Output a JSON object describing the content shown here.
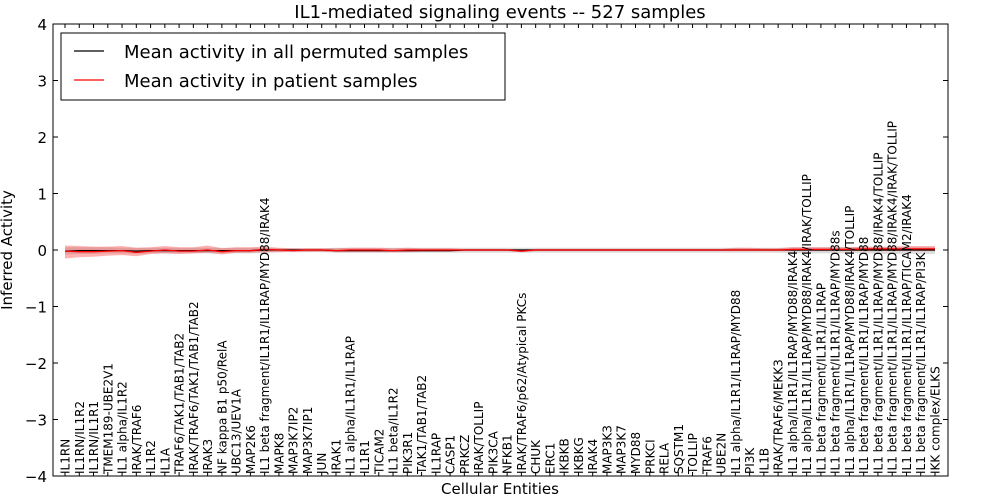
{
  "chart_data": {
    "type": "line",
    "title": "IL1-mediated signaling events -- 527 samples",
    "xlabel": "Cellular Entities",
    "ylabel": "Inferred Activity",
    "ylim": [
      -4,
      4
    ],
    "yticks": [
      -4,
      -3,
      -2,
      -1,
      0,
      1,
      2,
      3,
      4
    ],
    "ytick_labels": [
      "−4",
      "−3",
      "−2",
      "−1",
      "0",
      "1",
      "2",
      "3",
      "4"
    ],
    "legend": {
      "position": "top-left"
    },
    "categories": [
      "IL1RN",
      "IL1RN/IL1R2",
      "IL1RN/IL1R1",
      "TMEM189-UBE2V1",
      "IL1 alpha/IL1R2",
      "IRAK/TRAF6",
      "IL1R2",
      "IL1A",
      "TRAF6/TAK1/TAB1/TAB2",
      "IRAK/TRAF6/TAK1/TAB1/TAB2",
      "IRAK3",
      "NF kappa B1 p50/RelA",
      "UBC13/UEV1A",
      "MAP2K6",
      "IL1 beta fragment/IL1R1/IL1RAP/MYD88/IRAK4",
      "MAPK8",
      "MAP3K7IP2",
      "MAP3K7IP1",
      "JUN",
      "IRAK1",
      "IL1 alpha/IL1R1/IL1RAP",
      "IL1R1",
      "TICAM2",
      "IL1 beta/IL1R2",
      "PIK3R1",
      "TAK1/TAB1/TAB2",
      "IL1RAP",
      "CASP1",
      "PRKCZ",
      "IRAK/TOLLIP",
      "PIK3CA",
      "NFKB1",
      "IRAK/TRAF6/p62/Atypical PKCs",
      "CHUK",
      "ERC1",
      "IKBKB",
      "IKBKG",
      "IRAK4",
      "MAP3K3",
      "MAP3K7",
      "MYD88",
      "PRKCI",
      "RELA",
      "SQSTM1",
      "TOLLIP",
      "TRAF6",
      "UBE2N",
      "IL1 alpha/IL1R1/IL1RAP/MYD88",
      "PI3K",
      "IL1B",
      "IRAK/TRAF6/MEKK3",
      "IL1 alpha/IL1R1/IL1RAP/MYD88/IRAK4",
      "IL1 alpha/IL1R1/IL1RAP/MYD88/IRAK4/IRAK/TOLLIP",
      "IL1 beta fragment/IL1R1/IL1RAP",
      "IL1 beta fragment/IL1R1/IL1RAP/MYD88s",
      "IL1 alpha/IL1R1/IL1RAP/MYD88/IRAK4/TOLLIP",
      "IL1 beta fragment/IL1R1/IL1RAP/MYD88",
      "IL1 beta fragment/IL1R1/IL1RAP/MYD88/IRAK4/TOLLIP",
      "IL1 beta fragment/IL1R1/IL1RAP/MYD88/IRAK4/IRAK/TOLLIP",
      "IL1 beta fragment/IL1R1/IL1RAP/TICAM2/IRAK4",
      "IL1 beta fragment/IL1R1/IL1RAP/PI3K",
      "IKK complex/ELKS"
    ],
    "series": [
      {
        "name": "Mean activity in all permuted samples",
        "color": "#000000",
        "values": [
          -0.02,
          -0.01,
          -0.01,
          -0.01,
          -0.01,
          -0.02,
          -0.01,
          -0.01,
          -0.01,
          -0.01,
          -0.01,
          -0.01,
          -0.01,
          -0.01,
          0.0,
          0.0,
          0.0,
          0.0,
          0.0,
          -0.01,
          -0.01,
          -0.01,
          -0.01,
          -0.01,
          -0.01,
          -0.01,
          -0.01,
          -0.01,
          0.0,
          0.0,
          0.0,
          0.0,
          0.0,
          0.0,
          0.0,
          0.0,
          0.0,
          0.0,
          0.0,
          0.0,
          0.0,
          0.0,
          0.0,
          0.0,
          0.0,
          0.0,
          0.0,
          0.0,
          0.0,
          0.0,
          0.0,
          0.0,
          0.0,
          0.0,
          0.0,
          0.0,
          0.0,
          0.0,
          0.0,
          0.0,
          0.0,
          0.0
        ],
        "band_low": [
          -0.08,
          -0.07,
          -0.07,
          -0.06,
          -0.06,
          -0.07,
          -0.06,
          -0.06,
          -0.06,
          -0.06,
          -0.06,
          -0.06,
          -0.06,
          -0.06,
          -0.05,
          -0.04,
          -0.04,
          -0.04,
          -0.04,
          -0.05,
          -0.05,
          -0.05,
          -0.05,
          -0.05,
          -0.05,
          -0.05,
          -0.05,
          -0.05,
          -0.05,
          -0.05,
          -0.05,
          -0.05,
          -0.05,
          -0.05,
          -0.05,
          -0.05,
          -0.05,
          -0.05,
          -0.05,
          -0.05,
          -0.05,
          -0.05,
          -0.05,
          -0.05,
          -0.05,
          -0.05,
          -0.05,
          -0.05,
          -0.05,
          -0.05,
          -0.05,
          -0.06,
          -0.06,
          -0.06,
          -0.06,
          -0.06,
          -0.06,
          -0.07,
          -0.07,
          -0.07,
          -0.07,
          -0.07
        ],
        "band_high": [
          0.05,
          0.05,
          0.05,
          0.05,
          0.04,
          0.04,
          0.04,
          0.04,
          0.04,
          0.04,
          0.04,
          0.04,
          0.04,
          0.04,
          0.04,
          0.03,
          0.03,
          0.03,
          0.03,
          0.04,
          0.04,
          0.04,
          0.04,
          0.04,
          0.04,
          0.04,
          0.04,
          0.04,
          0.04,
          0.04,
          0.04,
          0.04,
          0.04,
          0.04,
          0.04,
          0.04,
          0.04,
          0.04,
          0.04,
          0.04,
          0.04,
          0.04,
          0.04,
          0.04,
          0.04,
          0.04,
          0.04,
          0.04,
          0.04,
          0.04,
          0.04,
          0.05,
          0.05,
          0.05,
          0.05,
          0.05,
          0.05,
          0.05,
          0.05,
          0.05,
          0.05,
          0.05
        ]
      },
      {
        "name": "Mean activity in patient samples",
        "color": "#ff0000",
        "values": [
          -0.02,
          -0.03,
          -0.03,
          -0.02,
          -0.01,
          -0.04,
          -0.02,
          0.0,
          -0.02,
          -0.02,
          0.0,
          -0.03,
          -0.01,
          -0.01,
          0.01,
          0.0,
          -0.01,
          0.0,
          0.0,
          -0.01,
          0.0,
          0.0,
          0.0,
          -0.01,
          0.0,
          0.0,
          0.0,
          0.0,
          0.0,
          0.0,
          0.0,
          0.0,
          -0.02,
          0.0,
          0.0,
          0.0,
          0.0,
          0.0,
          0.0,
          0.0,
          0.0,
          0.0,
          0.0,
          0.0,
          0.0,
          0.0,
          0.0,
          0.0,
          0.0,
          0.0,
          0.0,
          0.01,
          0.01,
          0.01,
          0.01,
          0.01,
          0.02,
          0.02,
          0.02,
          0.02,
          0.02,
          0.02
        ],
        "band_low": [
          -0.15,
          -0.13,
          -0.12,
          -0.1,
          -0.09,
          -0.11,
          -0.07,
          -0.06,
          -0.07,
          -0.06,
          -0.05,
          -0.08,
          -0.05,
          -0.05,
          -0.04,
          -0.04,
          -0.03,
          -0.03,
          -0.03,
          -0.04,
          -0.04,
          -0.04,
          -0.04,
          -0.04,
          -0.04,
          -0.03,
          -0.03,
          -0.03,
          -0.02,
          -0.02,
          -0.02,
          -0.02,
          -0.04,
          -0.02,
          -0.02,
          -0.02,
          -0.02,
          -0.02,
          -0.02,
          -0.02,
          -0.02,
          -0.02,
          -0.02,
          -0.02,
          -0.02,
          -0.02,
          -0.02,
          -0.02,
          -0.02,
          -0.02,
          -0.02,
          -0.02,
          -0.02,
          -0.02,
          -0.02,
          -0.02,
          -0.02,
          -0.02,
          -0.02,
          -0.02,
          -0.02,
          -0.02
        ],
        "band_high": [
          0.08,
          0.07,
          0.06,
          0.06,
          0.07,
          0.04,
          0.05,
          0.07,
          0.05,
          0.05,
          0.08,
          0.03,
          0.05,
          0.05,
          0.06,
          0.04,
          0.03,
          0.03,
          0.03,
          0.03,
          0.04,
          0.04,
          0.04,
          0.03,
          0.04,
          0.03,
          0.03,
          0.03,
          0.02,
          0.02,
          0.02,
          0.02,
          0.01,
          0.02,
          0.02,
          0.02,
          0.02,
          0.02,
          0.02,
          0.02,
          0.02,
          0.02,
          0.02,
          0.02,
          0.02,
          0.02,
          0.02,
          0.04,
          0.04,
          0.03,
          0.03,
          0.05,
          0.05,
          0.05,
          0.05,
          0.05,
          0.06,
          0.06,
          0.06,
          0.07,
          0.07,
          0.07
        ]
      }
    ]
  }
}
